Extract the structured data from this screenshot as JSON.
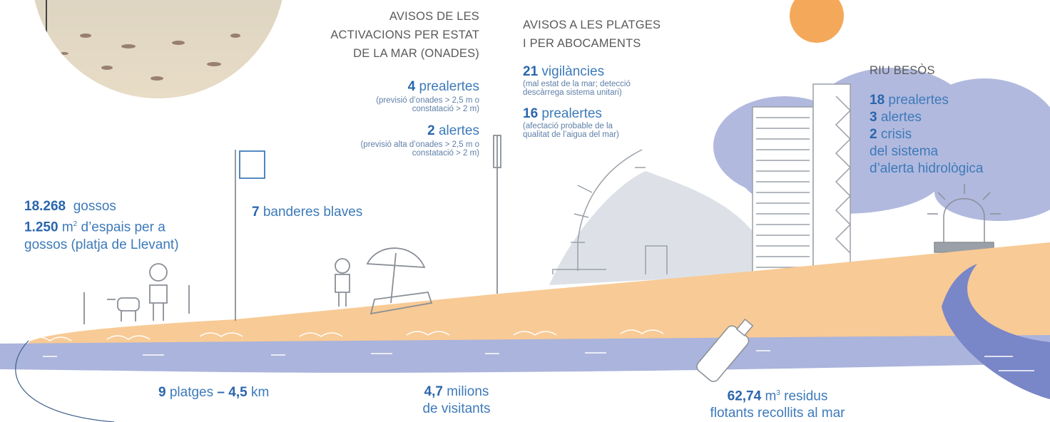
{
  "sea_state_warnings": {
    "title": [
      "AVISOS DE LES",
      "ACTIVACIONS PER ESTAT",
      "DE LA MAR (ONADES)"
    ],
    "items": [
      {
        "number": "4",
        "label": "prealertes",
        "note": [
          "(previsió d’onades > 2,5 m o",
          "constatació > 2 m)"
        ]
      },
      {
        "number": "2",
        "label": "alertes",
        "note": [
          "(previsió alta d’onades > 2,5 m o",
          "constatació > 2 m)"
        ]
      }
    ]
  },
  "beach_warnings": {
    "title": [
      "AVISOS A LES PLATGES",
      "I PER ABOCAMENTS"
    ],
    "items": [
      {
        "number": "21",
        "label": "vigilàncies",
        "note": [
          "(mal estat de la mar; detecció",
          "descàrrega sistema unitari)"
        ]
      },
      {
        "number": "16",
        "label": "prealertes",
        "note": [
          "(afectació probable de la",
          "qualitat de l’aigua del mar)"
        ]
      }
    ]
  },
  "besos_river": {
    "title": "RIU BESÒS",
    "items": [
      {
        "number": "18",
        "label": "prealertes"
      },
      {
        "number": "3",
        "label": "alertes"
      },
      {
        "number": "2",
        "label": "crisis"
      }
    ],
    "note": [
      "del sistema",
      "d’alerta hidrològica"
    ]
  },
  "dogs": {
    "number": "18.268",
    "label": "gossos",
    "area_number": "1.250",
    "area_unit": "m",
    "area_exponent": "2",
    "area_label": "d’espais per a",
    "area_note": "gossos (platja de Llevant)"
  },
  "flags": {
    "number": "7",
    "label": "banderes blaves"
  },
  "beaches": {
    "number": "9",
    "label": "platges",
    "length_number": "– 4,5",
    "length_unit": "km"
  },
  "visitors": {
    "number": "4,7",
    "label": "milions",
    "note": "de visitants"
  },
  "waste": {
    "number": "62,74",
    "unit": "m",
    "exponent": "3",
    "label": "residus",
    "note": "flotants recollits al mar"
  }
}
